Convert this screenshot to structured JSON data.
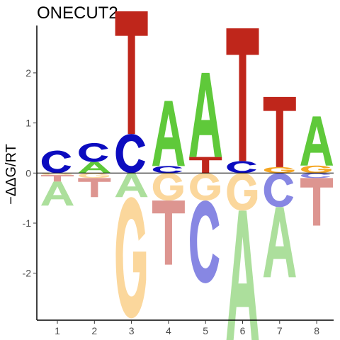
{
  "chart_data": {
    "type": "sequence-logo",
    "title": "ONECUT2",
    "xlabel": "",
    "ylabel": "−ΔΔG/RT",
    "x": [
      1,
      2,
      3,
      4,
      5,
      6,
      7,
      8
    ],
    "ylim": [
      -3.0,
      2.95
    ],
    "yticks": [
      -2,
      -1,
      0,
      1,
      2
    ],
    "grid": false,
    "legend": "none",
    "colors": {
      "A": "#5fc93a",
      "C": "#0c0cbf",
      "G": "#f5a623",
      "T": "#bf261b"
    },
    "faded_colors": {
      "A": "#acdf9c",
      "C": "#8787e3",
      "G": "#fbd79c",
      "T": "#dd9590"
    },
    "positions": [
      {
        "pos": 1,
        "letters": [
          {
            "base": "C",
            "value": 0.45
          },
          {
            "base": "A",
            "value": -0.48
          },
          {
            "base": "G",
            "value": -0.04
          },
          {
            "base": "T",
            "value": -0.13
          }
        ]
      },
      {
        "pos": 2,
        "letters": [
          {
            "base": "C",
            "value": 0.38
          },
          {
            "base": "A",
            "value": 0.22
          },
          {
            "base": "G",
            "value": -0.1
          },
          {
            "base": "T",
            "value": -0.38
          }
        ]
      },
      {
        "pos": 3,
        "letters": [
          {
            "base": "T",
            "value": 2.45
          },
          {
            "base": "C",
            "value": 0.78
          },
          {
            "base": "A",
            "value": -0.48
          },
          {
            "base": "G",
            "value": -2.42
          }
        ]
      },
      {
        "pos": 4,
        "letters": [
          {
            "base": "A",
            "value": 1.3
          },
          {
            "base": "C",
            "value": 0.14
          },
          {
            "base": "G",
            "value": -0.55
          },
          {
            "base": "T",
            "value": -1.28
          }
        ]
      },
      {
        "pos": 5,
        "letters": [
          {
            "base": "A",
            "value": 1.68
          },
          {
            "base": "T",
            "value": 0.32
          },
          {
            "base": "G",
            "value": -0.55
          },
          {
            "base": "C",
            "value": -1.65
          }
        ]
      },
      {
        "pos": 6,
        "letters": [
          {
            "base": "T",
            "value": 2.65
          },
          {
            "base": "C",
            "value": 0.24
          },
          {
            "base": "G",
            "value": -0.75
          },
          {
            "base": "A",
            "value": -2.6
          }
        ]
      },
      {
        "pos": 7,
        "letters": [
          {
            "base": "T",
            "value": 1.4
          },
          {
            "base": "G",
            "value": 0.12
          },
          {
            "base": "C",
            "value": -0.68
          },
          {
            "base": "A",
            "value": -1.4
          }
        ]
      },
      {
        "pos": 8,
        "letters": [
          {
            "base": "A",
            "value": 0.98
          },
          {
            "base": "G",
            "value": 0.15
          },
          {
            "base": "C",
            "value": -0.1
          },
          {
            "base": "T",
            "value": -0.95
          }
        ]
      }
    ]
  }
}
